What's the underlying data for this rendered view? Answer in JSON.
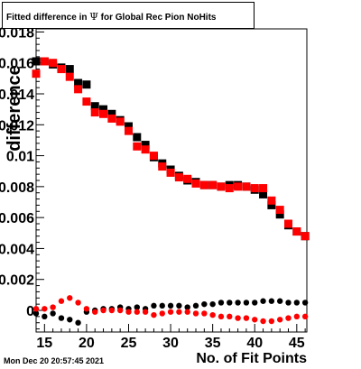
{
  "title": {
    "prefix": "Fitted difference in ",
    "symbol": "Ψ",
    "suffix": "  for Global Rec Pion NoHits"
  },
  "timestamp": "Mon Dec 20 20:57:45 2021",
  "chart_data": {
    "type": "scatter",
    "title": "Fitted difference in Ψ  for Global Rec Pion NoHits",
    "xlabel": "No. of Fit Points",
    "ylabel": "difference",
    "xlim": [
      14,
      46.2
    ],
    "ylim": [
      -0.0014,
      0.0182
    ],
    "x_ticks": [
      15,
      20,
      25,
      30,
      35,
      40,
      45
    ],
    "x_tick_labels": [
      "15",
      "20",
      "25",
      "30",
      "35",
      "40",
      "45"
    ],
    "y_ticks": [
      0,
      0.002,
      0.004,
      0.006,
      0.008,
      0.01,
      0.012,
      0.014,
      0.016,
      0.018
    ],
    "y_tick_labels": [
      "0",
      "0.002",
      "0.004",
      "0.006",
      "0.008",
      "0.01",
      "0.012",
      "0.014",
      "0.016",
      "0.018"
    ],
    "grid": false,
    "series": [
      {
        "marker": "square",
        "color": "#000000",
        "x": [
          14,
          15,
          16,
          17,
          18,
          19,
          20,
          21,
          22,
          23,
          24,
          25,
          26,
          27,
          28,
          29,
          30,
          31,
          32,
          33,
          34,
          35,
          36,
          37,
          38,
          39,
          40,
          41,
          42,
          43,
          44,
          45,
          46
        ],
        "values": [
          0.0161,
          0.0161,
          0.0159,
          0.0157,
          0.0156,
          0.0147,
          0.0146,
          0.0132,
          0.013,
          0.0127,
          0.0123,
          0.0119,
          0.0112,
          0.0107,
          0.0099,
          0.0095,
          0.0091,
          0.0087,
          0.0084,
          0.0083,
          0.0081,
          0.0081,
          0.008,
          0.0081,
          0.0081,
          0.008,
          0.0078,
          0.0075,
          0.0068,
          0.0062,
          0.0055,
          0.0051,
          0.0048
        ]
      },
      {
        "marker": "square",
        "color": "#ff0000",
        "x": [
          14,
          15,
          16,
          17,
          18,
          19,
          20,
          21,
          22,
          23,
          24,
          25,
          26,
          27,
          28,
          29,
          30,
          31,
          32,
          33,
          34,
          35,
          36,
          37,
          38,
          39,
          40,
          41,
          42,
          43,
          44,
          45,
          46
        ],
        "values": [
          0.0153,
          0.0161,
          0.016,
          0.0156,
          0.0151,
          0.0143,
          0.0135,
          0.0128,
          0.0127,
          0.0124,
          0.0122,
          0.0116,
          0.0106,
          0.0104,
          0.01,
          0.0093,
          0.0089,
          0.0086,
          0.0085,
          0.0082,
          0.0081,
          0.0081,
          0.008,
          0.0079,
          0.008,
          0.008,
          0.0079,
          0.0079,
          0.0071,
          0.0065,
          0.0056,
          0.0051,
          0.0048
        ]
      },
      {
        "marker": "circle",
        "color": "#000000",
        "x": [
          14,
          15,
          16,
          17,
          18,
          19,
          20,
          21,
          22,
          23,
          24,
          25,
          26,
          27,
          28,
          29,
          30,
          31,
          32,
          33,
          34,
          35,
          36,
          37,
          38,
          39,
          40,
          41,
          42,
          43,
          44,
          45,
          46
        ],
        "values": [
          -0.0002,
          -0.0004,
          -0.0002,
          -0.0005,
          -0.0006,
          -0.0008,
          -0.0001,
          0.0,
          0.0001,
          0.0001,
          0.0002,
          0.0001,
          0.0002,
          0.0001,
          0.0003,
          0.0003,
          0.0003,
          0.0003,
          0.0002,
          0.0003,
          0.0004,
          0.0004,
          0.0005,
          0.0005,
          0.0005,
          0.0005,
          0.0005,
          0.0006,
          0.0006,
          0.0006,
          0.0005,
          0.0005,
          0.0005
        ]
      },
      {
        "marker": "circle",
        "color": "#ff0000",
        "x": [
          14,
          15,
          16,
          17,
          18,
          19,
          20,
          21,
          22,
          23,
          24,
          25,
          26,
          27,
          28,
          29,
          30,
          31,
          32,
          33,
          34,
          35,
          36,
          37,
          38,
          39,
          40,
          41,
          42,
          43,
          44,
          45,
          46
        ],
        "values": [
          0.0001,
          0.0001,
          0.0002,
          0.0006,
          0.0008,
          0.0005,
          0.0001,
          -0.0001,
          0.0,
          0.0,
          0.0,
          -0.0001,
          -0.0001,
          -0.0001,
          -0.0003,
          -0.0002,
          -0.0001,
          -0.0001,
          -0.0001,
          -0.0002,
          -0.0002,
          -0.0003,
          -0.0004,
          -0.0004,
          -0.0005,
          -0.0005,
          -0.0006,
          -0.0007,
          -0.0007,
          -0.0006,
          -0.0005,
          -0.0004,
          -0.0004
        ]
      }
    ]
  }
}
